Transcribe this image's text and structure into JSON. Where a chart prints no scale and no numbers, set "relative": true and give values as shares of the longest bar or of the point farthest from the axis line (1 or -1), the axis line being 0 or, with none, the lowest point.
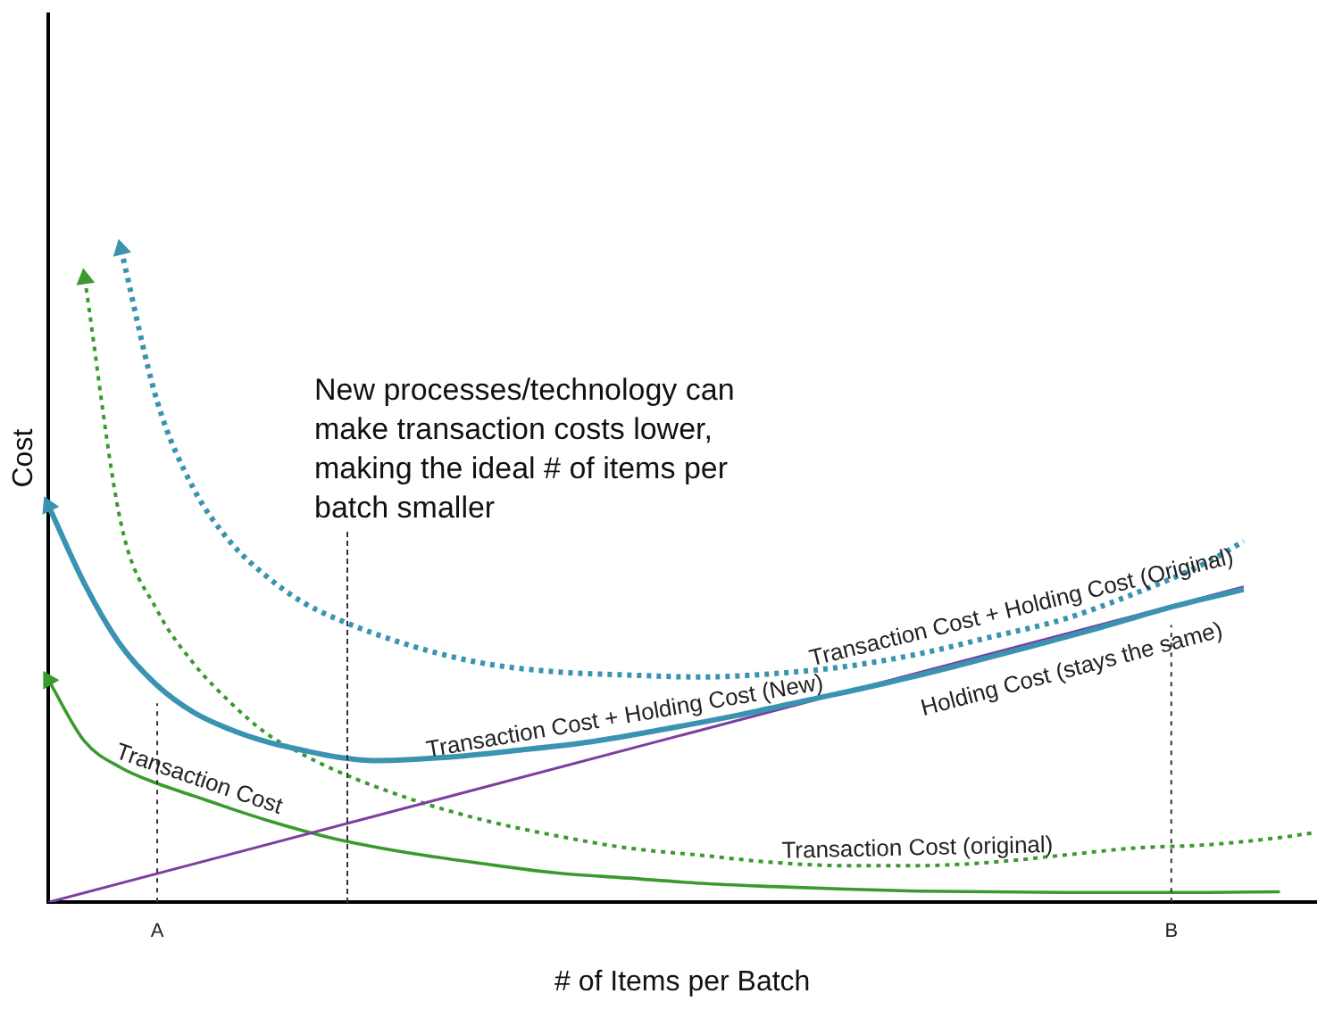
{
  "chart_data": {
    "type": "line",
    "relative": true,
    "xlabel": "# of Items per Batch",
    "ylabel": "Cost",
    "categories": [
      null,
      null,
      null,
      "A",
      null,
      null,
      null,
      null,
      null,
      null,
      null,
      null,
      null,
      null,
      null,
      null,
      null,
      null,
      null,
      null,
      null,
      null,
      null,
      null,
      null,
      null,
      null,
      null,
      null,
      null,
      null,
      "B",
      null,
      null,
      null,
      null
    ],
    "series": [
      {
        "name": "Transaction Cost + Holding Cost (Original)",
        "color": "#3a93b0",
        "line_style": "dotted",
        "values": [
          null,
          null,
          1.0,
          0.767,
          0.634,
          0.553,
          0.5,
          0.46,
          0.433,
          null,
          0.393,
          null,
          0.366,
          null,
          0.353,
          null,
          0.348,
          null,
          0.345,
          null,
          0.35,
          null,
          0.361,
          null,
          0.38,
          null,
          0.406,
          null,
          0.433,
          null,
          0.473,
          null,
          0.521,
          0.553,
          null,
          null
        ]
      },
      {
        "name": "Transaction Cost + Holding Cost (New)",
        "color": "#3a93b0",
        "line_style": "solid",
        "values": [
          0.607,
          0.487,
          0.393,
          0.332,
          0.291,
          0.265,
          0.246,
          0.233,
          0.222,
          0.217,
          null,
          0.222,
          null,
          0.233,
          null,
          0.246,
          null,
          0.265,
          null,
          0.286,
          null,
          0.31,
          null,
          0.334,
          null,
          0.361,
          null,
          0.39,
          null,
          0.42,
          null,
          0.452,
          null,
          0.479,
          null,
          null
        ]
      },
      {
        "name": "Holding Cost (stays the same)",
        "color": "#7b3fa0",
        "line_style": "solid",
        "values": [
          0,
          null,
          null,
          null,
          null,
          null,
          null,
          null,
          null,
          null,
          null,
          null,
          null,
          null,
          null,
          null,
          null,
          null,
          null,
          null,
          null,
          null,
          null,
          null,
          null,
          null,
          null,
          null,
          null,
          null,
          null,
          null,
          null,
          0.483,
          null,
          null
        ]
      },
      {
        "name": "Transaction Cost",
        "color": "#3a9a2e",
        "line_style": "solid",
        "values": [
          0.34,
          0.246,
          0.206,
          0.182,
          0.163,
          0.144,
          0.126,
          0.11,
          0.096,
          null,
          0.075,
          null,
          0.059,
          null,
          0.045,
          null,
          0.037,
          null,
          0.029,
          null,
          0.024,
          null,
          0.02,
          null,
          0.017,
          null,
          0.016,
          null,
          0.015,
          null,
          0.015,
          null,
          0.015,
          null,
          0.016,
          null
        ]
      },
      {
        "name": "Transaction Cost (original)",
        "color": "#3a9a2e",
        "line_style": "dotted",
        "values": [
          null,
          0.955,
          0.58,
          0.447,
          0.366,
          0.307,
          0.259,
          0.227,
          0.2,
          null,
          0.158,
          null,
          0.126,
          null,
          0.102,
          null,
          0.083,
          null,
          0.072,
          null,
          0.061,
          null,
          0.056,
          null,
          0.056,
          null,
          0.061,
          null,
          0.072,
          null,
          0.083,
          null,
          0.088,
          null,
          0.099,
          0.107
        ]
      }
    ],
    "ref_lines": [
      {
        "axis": "x",
        "value": "A",
        "line_style": "dotted"
      },
      {
        "axis": "x",
        "value": "B",
        "line_style": "dotted"
      }
    ],
    "annotations": [
      "New processes/technology can make transaction costs lower, making the ideal # of items per batch smaller"
    ],
    "grid": false,
    "legend": false,
    "marker": "none"
  }
}
